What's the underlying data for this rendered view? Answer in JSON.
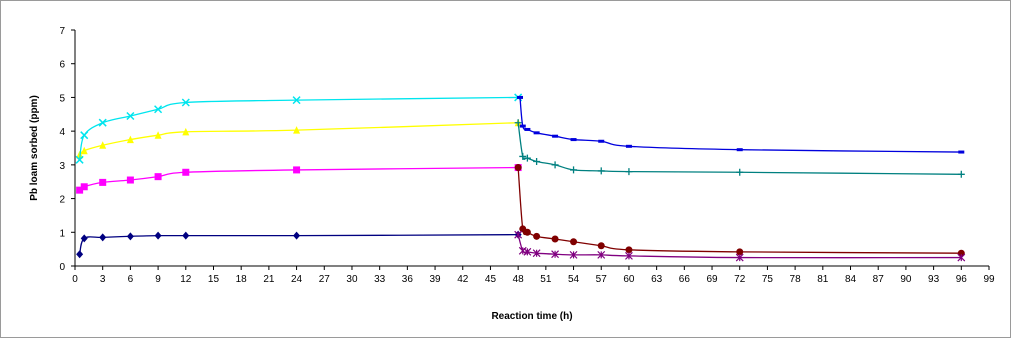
{
  "chart_data": {
    "type": "line",
    "title": "",
    "xlabel": "Reaction time (h)",
    "ylabel": "Pb loam sorbed (ppm)",
    "xlim": [
      0,
      99
    ],
    "ylim": [
      0,
      7
    ],
    "x_ticks": [
      0,
      3,
      6,
      9,
      12,
      15,
      18,
      21,
      24,
      27,
      30,
      33,
      36,
      39,
      42,
      45,
      48,
      51,
      54,
      57,
      60,
      63,
      66,
      69,
      72,
      75,
      78,
      81,
      84,
      87,
      90,
      93,
      96,
      99
    ],
    "y_ticks": [
      0,
      1,
      2,
      3,
      4,
      5,
      6,
      7
    ],
    "grid": false,
    "legend": "none",
    "series": [
      {
        "color": "#000080",
        "marker": "diamond",
        "x": [
          0.5,
          1,
          3,
          6,
          9,
          12,
          24,
          48
        ],
        "y": [
          0.35,
          0.82,
          0.85,
          0.88,
          0.9,
          0.9,
          0.9,
          0.93
        ]
      },
      {
        "color": "#ff00ff",
        "marker": "square",
        "x": [
          0.5,
          1,
          3,
          6,
          9,
          12,
          24,
          48
        ],
        "y": [
          2.25,
          2.35,
          2.48,
          2.55,
          2.65,
          2.78,
          2.85,
          2.92
        ]
      },
      {
        "color": "#ffff00",
        "marker": "triangle",
        "x": [
          0.5,
          1,
          3,
          6,
          9,
          12,
          24,
          48
        ],
        "y": [
          3.3,
          3.42,
          3.58,
          3.75,
          3.88,
          3.98,
          4.03,
          4.25
        ]
      },
      {
        "color": "#00e5ee",
        "marker": "x",
        "x": [
          0.5,
          1,
          3,
          6,
          9,
          12,
          24,
          48
        ],
        "y": [
          3.15,
          3.88,
          4.25,
          4.45,
          4.65,
          4.85,
          4.92,
          5.0
        ]
      },
      {
        "color": "#0000dd",
        "marker": "dash",
        "x": [
          48.2,
          48.5,
          49,
          50,
          52,
          54,
          57,
          60,
          72,
          96
        ],
        "y": [
          5.0,
          4.15,
          4.05,
          3.95,
          3.85,
          3.75,
          3.7,
          3.55,
          3.45,
          3.38
        ]
      },
      {
        "color": "#008080",
        "marker": "plus",
        "x": [
          48,
          48.5,
          49,
          50,
          52,
          54,
          57,
          60,
          72,
          96
        ],
        "y": [
          4.25,
          3.25,
          3.2,
          3.1,
          3.0,
          2.85,
          2.82,
          2.8,
          2.78,
          2.72
        ]
      },
      {
        "color": "#800000",
        "marker": "circle",
        "x": [
          48,
          48.5,
          49,
          50,
          52,
          54,
          57,
          60,
          72,
          96
        ],
        "y": [
          2.92,
          1.1,
          1.0,
          0.88,
          0.8,
          0.72,
          0.6,
          0.48,
          0.42,
          0.38
        ]
      },
      {
        "color": "#800080",
        "marker": "star",
        "x": [
          48,
          48.5,
          49,
          50,
          52,
          54,
          57,
          60,
          72,
          96
        ],
        "y": [
          0.93,
          0.45,
          0.42,
          0.38,
          0.35,
          0.33,
          0.33,
          0.3,
          0.25,
          0.25
        ]
      }
    ]
  }
}
